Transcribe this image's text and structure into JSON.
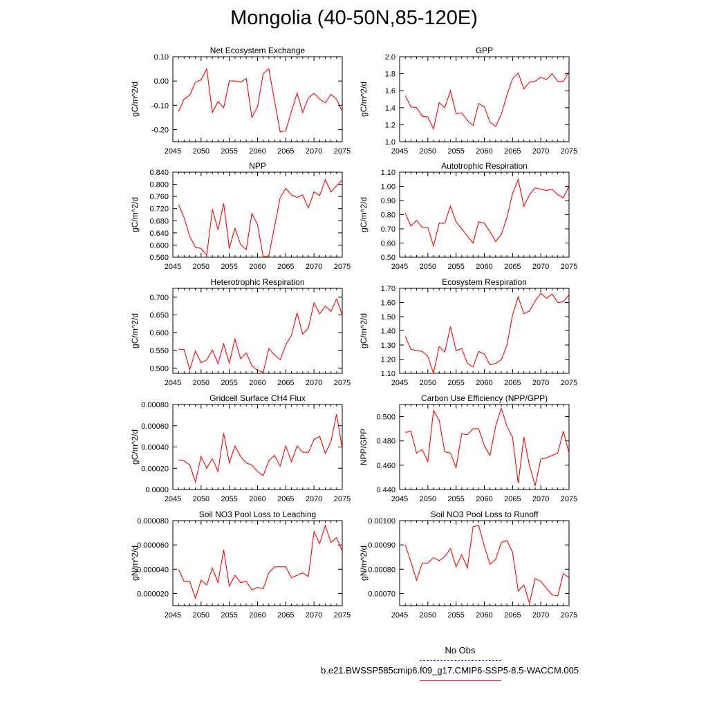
{
  "page": {
    "title": "Mongolia (40-50N,85-120E)"
  },
  "legend": {
    "entries": [
      {
        "label": "No Obs",
        "color": "#3333cc",
        "style": "dashed"
      },
      {
        "label": "b.e21.BWSSP585cmip6.f09_g17.CMIP6-SSP5-8.5-WACCM.005",
        "color": "#ee2222",
        "style": "solid"
      }
    ]
  },
  "colors": {
    "series": "#ff0000",
    "axis": "#000000"
  },
  "chart_data": [
    {
      "type": "line",
      "title": "Net Ecosystem Exchange",
      "ylabel": "gC/m^2/d",
      "xlim": [
        2045,
        2075
      ],
      "ylim": [
        -0.25,
        0.1
      ],
      "xticks": [
        2045,
        2050,
        2055,
        2060,
        2065,
        2070,
        2075
      ],
      "yticks": [
        -0.2,
        -0.1,
        0.0,
        0.1
      ],
      "ytick_labels": [
        "-0.20",
        "-0.10",
        "0.00",
        "0.10"
      ],
      "x": [
        2046,
        2047,
        2048,
        2049,
        2050,
        2051,
        2052,
        2053,
        2054,
        2055,
        2056,
        2057,
        2058,
        2059,
        2060,
        2061,
        2062,
        2063,
        2064,
        2065,
        2066,
        2067,
        2068,
        2069,
        2070,
        2071,
        2072,
        2073,
        2074,
        2075
      ],
      "series": [
        {
          "values": [
            -0.125,
            -0.075,
            -0.058,
            -0.005,
            0.005,
            0.05,
            -0.13,
            -0.085,
            -0.11,
            0.0,
            0.0,
            -0.005,
            0.01,
            -0.15,
            -0.105,
            0.03,
            0.05,
            -0.08,
            -0.21,
            -0.205,
            -0.125,
            -0.05,
            -0.13,
            -0.07,
            -0.05,
            -0.075,
            -0.09,
            -0.055,
            -0.075,
            -0.125
          ]
        }
      ]
    },
    {
      "type": "line",
      "title": "GPP",
      "ylabel": "gC/m^2/d",
      "xlim": [
        2045,
        2075
      ],
      "ylim": [
        1.0,
        2.0
      ],
      "xticks": [
        2045,
        2050,
        2055,
        2060,
        2065,
        2070,
        2075
      ],
      "yticks": [
        1.0,
        1.2,
        1.4,
        1.6,
        1.8,
        2.0
      ],
      "ytick_labels": [
        "1.0",
        "1.2",
        "1.4",
        "1.6",
        "1.8",
        "2.0"
      ],
      "x": [
        2046,
        2047,
        2048,
        2049,
        2050,
        2051,
        2052,
        2053,
        2054,
        2055,
        2056,
        2057,
        2058,
        2059,
        2060,
        2061,
        2062,
        2063,
        2064,
        2065,
        2066,
        2067,
        2068,
        2069,
        2070,
        2071,
        2072,
        2073,
        2074,
        2075
      ],
      "series": [
        {
          "values": [
            1.54,
            1.41,
            1.4,
            1.3,
            1.29,
            1.15,
            1.46,
            1.4,
            1.6,
            1.33,
            1.34,
            1.25,
            1.19,
            1.45,
            1.41,
            1.23,
            1.18,
            1.32,
            1.55,
            1.74,
            1.81,
            1.62,
            1.7,
            1.71,
            1.76,
            1.73,
            1.8,
            1.71,
            1.71,
            1.82
          ]
        }
      ]
    },
    {
      "type": "line",
      "title": "NPP",
      "ylabel": "gC/m^2/d",
      "xlim": [
        2045,
        2075
      ],
      "ylim": [
        0.56,
        0.84
      ],
      "xticks": [
        2045,
        2050,
        2055,
        2060,
        2065,
        2070,
        2075
      ],
      "yticks": [
        0.56,
        0.6,
        0.64,
        0.68,
        0.72,
        0.76,
        0.8,
        0.84
      ],
      "ytick_labels": [
        "0.560",
        "0.600",
        "0.640",
        "0.680",
        "0.720",
        "0.760",
        "0.800",
        "0.840"
      ],
      "x": [
        2046,
        2047,
        2048,
        2049,
        2050,
        2051,
        2052,
        2053,
        2054,
        2055,
        2056,
        2057,
        2058,
        2059,
        2060,
        2061,
        2062,
        2063,
        2064,
        2065,
        2066,
        2067,
        2068,
        2069,
        2070,
        2071,
        2072,
        2073,
        2074,
        2075
      ],
      "series": [
        {
          "values": [
            0.734,
            0.69,
            0.628,
            0.593,
            0.589,
            0.566,
            0.718,
            0.65,
            0.737,
            0.589,
            0.655,
            0.602,
            0.585,
            0.704,
            0.667,
            0.561,
            0.565,
            0.66,
            0.756,
            0.787,
            0.765,
            0.757,
            0.765,
            0.722,
            0.775,
            0.763,
            0.815,
            0.775,
            0.795,
            0.815
          ]
        }
      ]
    },
    {
      "type": "line",
      "title": "Autotrophic Respiration",
      "ylabel": "gC/m^2/d",
      "xlim": [
        2045,
        2075
      ],
      "ylim": [
        0.5,
        1.1
      ],
      "xticks": [
        2045,
        2050,
        2055,
        2060,
        2065,
        2070,
        2075
      ],
      "yticks": [
        0.5,
        0.6,
        0.7,
        0.8,
        0.9,
        1.0,
        1.1
      ],
      "ytick_labels": [
        "0.50",
        "0.60",
        "0.70",
        "0.80",
        "0.90",
        "1.00",
        "1.10"
      ],
      "x": [
        2046,
        2047,
        2048,
        2049,
        2050,
        2051,
        2052,
        2053,
        2054,
        2055,
        2056,
        2057,
        2058,
        2059,
        2060,
        2061,
        2062,
        2063,
        2064,
        2065,
        2066,
        2067,
        2068,
        2069,
        2070,
        2071,
        2072,
        2073,
        2074,
        2075
      ],
      "series": [
        {
          "values": [
            0.81,
            0.72,
            0.76,
            0.71,
            0.71,
            0.58,
            0.74,
            0.74,
            0.86,
            0.75,
            0.7,
            0.65,
            0.6,
            0.75,
            0.74,
            0.68,
            0.61,
            0.66,
            0.78,
            0.95,
            1.05,
            0.86,
            0.94,
            0.99,
            0.98,
            0.97,
            0.98,
            0.94,
            0.92,
            1.0
          ]
        }
      ]
    },
    {
      "type": "line",
      "title": "Heterotrophic Respiration",
      "ylabel": "gC/m^2/d",
      "xlim": [
        2045,
        2075
      ],
      "ylim": [
        0.485,
        0.725
      ],
      "xticks": [
        2045,
        2050,
        2055,
        2060,
        2065,
        2070,
        2075
      ],
      "yticks": [
        0.5,
        0.55,
        0.6,
        0.65,
        0.7
      ],
      "ytick_labels": [
        "0.500",
        "0.550",
        "0.600",
        "0.650",
        "0.700"
      ],
      "x": [
        2046,
        2047,
        2048,
        2049,
        2050,
        2051,
        2052,
        2053,
        2054,
        2055,
        2056,
        2057,
        2058,
        2059,
        2060,
        2061,
        2062,
        2063,
        2064,
        2065,
        2066,
        2067,
        2068,
        2069,
        2070,
        2071,
        2072,
        2073,
        2074,
        2075
      ],
      "series": [
        {
          "values": [
            0.553,
            0.552,
            0.495,
            0.548,
            0.515,
            0.523,
            0.551,
            0.513,
            0.568,
            0.514,
            0.582,
            0.526,
            0.543,
            0.507,
            0.493,
            0.488,
            0.555,
            0.537,
            0.523,
            0.565,
            0.592,
            0.656,
            0.596,
            0.613,
            0.684,
            0.653,
            0.675,
            0.66,
            0.695,
            0.65
          ]
        }
      ]
    },
    {
      "type": "line",
      "title": "Ecosystem Respiration",
      "ylabel": "gC/m^2/d",
      "xlim": [
        2045,
        2075
      ],
      "ylim": [
        1.1,
        1.7
      ],
      "xticks": [
        2045,
        2050,
        2055,
        2060,
        2065,
        2070,
        2075
      ],
      "yticks": [
        1.1,
        1.2,
        1.3,
        1.4,
        1.5,
        1.6,
        1.7
      ],
      "ytick_labels": [
        "1.10",
        "1.20",
        "1.30",
        "1.40",
        "1.50",
        "1.60",
        "1.70"
      ],
      "x": [
        2046,
        2047,
        2048,
        2049,
        2050,
        2051,
        2052,
        2053,
        2054,
        2055,
        2056,
        2057,
        2058,
        2059,
        2060,
        2061,
        2062,
        2063,
        2064,
        2065,
        2066,
        2067,
        2068,
        2069,
        2070,
        2071,
        2072,
        2073,
        2074,
        2075
      ],
      "series": [
        {
          "values": [
            1.36,
            1.27,
            1.26,
            1.255,
            1.22,
            1.1,
            1.29,
            1.25,
            1.43,
            1.26,
            1.275,
            1.17,
            1.145,
            1.255,
            1.235,
            1.16,
            1.17,
            1.195,
            1.3,
            1.51,
            1.64,
            1.52,
            1.54,
            1.61,
            1.665,
            1.63,
            1.66,
            1.6,
            1.605,
            1.655
          ]
        }
      ]
    },
    {
      "type": "line",
      "title": "Gridcell Surface CH4 Flux",
      "ylabel": "gC/m^2/d",
      "xlim": [
        2045,
        2075
      ],
      "ylim": [
        0.0,
        0.0008
      ],
      "xticks": [
        2045,
        2050,
        2055,
        2060,
        2065,
        2070,
        2075
      ],
      "yticks": [
        0.0,
        0.0002,
        0.0004,
        0.0006,
        0.0008
      ],
      "ytick_labels": [
        "0.0000",
        "0.00020",
        "0.00040",
        "0.00060",
        "0.00080"
      ],
      "x": [
        2046,
        2047,
        2048,
        2049,
        2050,
        2051,
        2052,
        2053,
        2054,
        2055,
        2056,
        2057,
        2058,
        2059,
        2060,
        2061,
        2062,
        2063,
        2064,
        2065,
        2066,
        2067,
        2068,
        2069,
        2070,
        2071,
        2072,
        2073,
        2074,
        2075
      ],
      "series": [
        {
          "values": [
            0.00028,
            0.00027,
            0.00023,
            7e-05,
            0.00031,
            0.0002,
            0.00029,
            0.00017,
            0.00053,
            0.00025,
            0.00041,
            0.00031,
            0.00025,
            0.00023,
            0.00017,
            0.00013,
            0.00027,
            0.00032,
            0.00022,
            0.00041,
            0.00026,
            0.00041,
            0.00035,
            0.00035,
            0.00047,
            0.0005,
            0.00034,
            0.00045,
            0.00071,
            0.00038
          ]
        }
      ]
    },
    {
      "type": "line",
      "title": "Carbon Use Efficiency (NPP/GPP)",
      "ylabel": "NPP/GPP",
      "xlim": [
        2045,
        2075
      ],
      "ylim": [
        0.44,
        0.51
      ],
      "xticks": [
        2045,
        2050,
        2055,
        2060,
        2065,
        2070,
        2075
      ],
      "yticks": [
        0.44,
        0.46,
        0.48,
        0.5
      ],
      "ytick_labels": [
        "0.440",
        "0.460",
        "0.480",
        "0.500"
      ],
      "x": [
        2046,
        2047,
        2048,
        2049,
        2050,
        2051,
        2052,
        2053,
        2054,
        2055,
        2056,
        2057,
        2058,
        2059,
        2060,
        2061,
        2062,
        2063,
        2064,
        2065,
        2066,
        2067,
        2068,
        2069,
        2070,
        2071,
        2072,
        2073,
        2074,
        2075
      ],
      "series": [
        {
          "values": [
            0.487,
            0.488,
            0.47,
            0.473,
            0.463,
            0.505,
            0.497,
            0.471,
            0.47,
            0.458,
            0.486,
            0.485,
            0.49,
            0.49,
            0.476,
            0.468,
            0.492,
            0.507,
            0.492,
            0.483,
            0.445,
            0.483,
            0.46,
            0.443,
            0.465,
            0.466,
            0.468,
            0.47,
            0.488,
            0.47
          ]
        }
      ]
    },
    {
      "type": "line",
      "title": "Soil NO3 Pool Loss to Leaching",
      "ylabel": "gN/m^2/d",
      "xlim": [
        2045,
        2075
      ],
      "ylim": [
        1e-05,
        8e-05
      ],
      "xticks": [
        2045,
        2050,
        2055,
        2060,
        2065,
        2070,
        2075
      ],
      "yticks": [
        2e-05,
        4e-05,
        6e-05,
        8e-05
      ],
      "ytick_labels": [
        "0.000020",
        "0.000040",
        "0.000060",
        "0.000080"
      ],
      "x": [
        2046,
        2047,
        2048,
        2049,
        2050,
        2051,
        2052,
        2053,
        2054,
        2055,
        2056,
        2057,
        2058,
        2059,
        2060,
        2061,
        2062,
        2063,
        2064,
        2065,
        2066,
        2067,
        2068,
        2069,
        2070,
        2071,
        2072,
        2073,
        2074,
        2075
      ],
      "series": [
        {
          "values": [
            4e-05,
            3e-05,
            3e-05,
            1.6e-05,
            3.1e-05,
            2.7e-05,
            4.1e-05,
            2.9e-05,
            5.6e-05,
            2.6e-05,
            3.5e-05,
            2.9e-05,
            3e-05,
            2.3e-05,
            2.5e-05,
            2.4e-05,
            3.7e-05,
            4.2e-05,
            4.2e-05,
            4.2e-05,
            3.3e-05,
            3.5e-05,
            3.7e-05,
            3.4e-05,
            7.1e-05,
            6.1e-05,
            7.6e-05,
            6.2e-05,
            6.6e-05,
            5.5e-05
          ]
        }
      ]
    },
    {
      "type": "line",
      "title": "Soil NO3 Pool Loss to Runoff",
      "ylabel": "gN/m^2/d",
      "xlim": [
        2045,
        2075
      ],
      "ylim": [
        0.00065,
        0.001
      ],
      "xticks": [
        2045,
        2050,
        2055,
        2060,
        2065,
        2070,
        2075
      ],
      "yticks": [
        0.0007,
        0.0008,
        0.0009,
        0.001
      ],
      "ytick_labels": [
        "0.00070",
        "0.00080",
        "0.00090",
        "0.00100"
      ],
      "x": [
        2046,
        2047,
        2048,
        2049,
        2050,
        2051,
        2052,
        2053,
        2054,
        2055,
        2056,
        2057,
        2058,
        2059,
        2060,
        2061,
        2062,
        2063,
        2064,
        2065,
        2066,
        2067,
        2068,
        2069,
        2070,
        2071,
        2072,
        2073,
        2074,
        2075
      ],
      "series": [
        {
          "values": [
            0.0009,
            0.00083,
            0.000755,
            0.000825,
            0.000825,
            0.000848,
            0.000835,
            0.000852,
            0.000885,
            0.00081,
            0.00086,
            0.000805,
            0.000975,
            0.00098,
            0.000895,
            0.00082,
            0.00084,
            0.00091,
            0.000918,
            0.00087,
            0.00071,
            0.000735,
            0.00066,
            0.000762,
            0.00075,
            0.000722,
            0.000695,
            0.00069,
            0.000782,
            0.000765
          ]
        }
      ]
    }
  ]
}
